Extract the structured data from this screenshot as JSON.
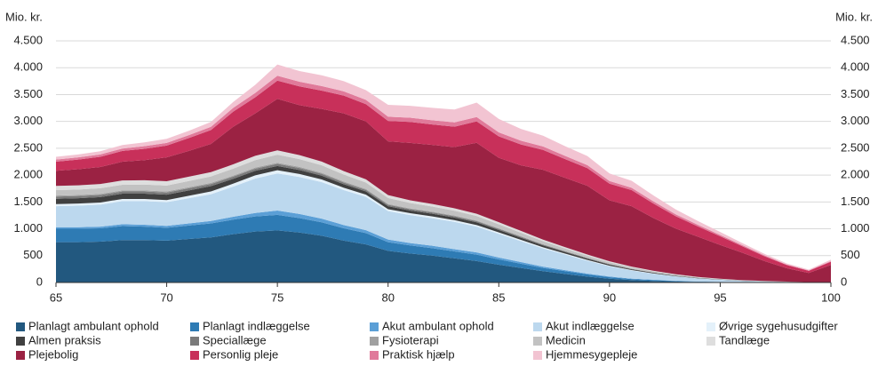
{
  "chart_data": {
    "type": "stacked_area",
    "ylabel": "Mio. kr.",
    "x": [
      65,
      66,
      67,
      68,
      69,
      70,
      71,
      72,
      73,
      74,
      75,
      76,
      77,
      78,
      79,
      80,
      81,
      82,
      83,
      84,
      85,
      86,
      87,
      88,
      89,
      90,
      91,
      92,
      93,
      94,
      95,
      96,
      97,
      98,
      99,
      100
    ],
    "xlim": [
      65,
      100
    ],
    "xticks": [
      65,
      70,
      75,
      80,
      85,
      90,
      95,
      100
    ],
    "ylim": [
      0,
      4500
    ],
    "yticks": [
      0,
      500,
      {
        "value": 1000,
        "label": "1.000"
      },
      {
        "value": 1500,
        "label": "1.500"
      },
      {
        "value": 2000,
        "label": "2.000"
      },
      {
        "value": 2500,
        "label": "2.500"
      },
      {
        "value": 3000,
        "label": "3.000"
      },
      {
        "value": 3500,
        "label": "3.500"
      },
      {
        "value": 4000,
        "label": "4.000"
      },
      {
        "value": 4500,
        "label": "4.500"
      }
    ],
    "grid": true,
    "legend": "bottom",
    "series": [
      {
        "name": "Planlagt ambulant ophold",
        "color": "#22587f",
        "values": [
          750,
          750,
          760,
          790,
          790,
          780,
          810,
          840,
          900,
          950,
          970,
          930,
          870,
          780,
          710,
          590,
          540,
          500,
          450,
          400,
          330,
          270,
          210,
          160,
          110,
          70,
          45,
          30,
          18,
          10,
          6,
          3,
          2,
          1,
          0,
          0
        ]
      },
      {
        "name": "Planlagt indlæggelse",
        "color": "#2e7bb4",
        "values": [
          250,
          250,
          250,
          260,
          250,
          240,
          250,
          260,
          270,
          280,
          290,
          270,
          250,
          230,
          210,
          160,
          150,
          140,
          130,
          120,
          100,
          80,
          60,
          50,
          40,
          30,
          20,
          15,
          10,
          6,
          4,
          2,
          1,
          1,
          0,
          0
        ]
      },
      {
        "name": "Akut ambulant ophold",
        "color": "#5b9fd6",
        "values": [
          30,
          30,
          30,
          35,
          35,
          35,
          40,
          45,
          55,
          65,
          80,
          75,
          70,
          60,
          55,
          50,
          45,
          45,
          40,
          40,
          35,
          30,
          25,
          20,
          15,
          12,
          8,
          6,
          4,
          3,
          2,
          1,
          1,
          0,
          0,
          0
        ]
      },
      {
        "name": "Akut indlæggelse",
        "color": "#bcd8ee",
        "values": [
          390,
          400,
          410,
          430,
          440,
          440,
          470,
          500,
          560,
          640,
          690,
          690,
          680,
          650,
          620,
          530,
          520,
          510,
          510,
          480,
          440,
          390,
          340,
          290,
          240,
          190,
          150,
          110,
          80,
          55,
          38,
          25,
          15,
          8,
          4,
          3
        ]
      },
      {
        "name": "Øvrige sygehusudgifter",
        "color": "#e4f1fa",
        "values": [
          40,
          40,
          40,
          40,
          40,
          40,
          45,
          50,
          55,
          60,
          60,
          55,
          50,
          45,
          40,
          35,
          35,
          35,
          30,
          30,
          28,
          24,
          20,
          17,
          14,
          11,
          8,
          6,
          4,
          3,
          2,
          1,
          1,
          0,
          0,
          0
        ]
      },
      {
        "name": "Almen praksis",
        "color": "#404040",
        "values": [
          100,
          100,
          100,
          100,
          100,
          100,
          100,
          100,
          90,
          85,
          80,
          75,
          70,
          65,
          60,
          55,
          50,
          50,
          50,
          50,
          45,
          40,
          35,
          30,
          25,
          20,
          15,
          12,
          9,
          6,
          4,
          3,
          2,
          1,
          1,
          1
        ]
      },
      {
        "name": "Speciallæge",
        "color": "#7a7a7a",
        "values": [
          40,
          40,
          40,
          40,
          40,
          40,
          40,
          40,
          40,
          40,
          40,
          38,
          35,
          32,
          30,
          28,
          26,
          25,
          24,
          22,
          20,
          18,
          15,
          12,
          10,
          8,
          6,
          5,
          4,
          3,
          2,
          1,
          1,
          1,
          0,
          0
        ]
      },
      {
        "name": "Fysioterapi",
        "color": "#a0a0a0",
        "values": [
          20,
          20,
          20,
          20,
          20,
          20,
          20,
          20,
          20,
          20,
          20,
          20,
          18,
          18,
          16,
          15,
          14,
          14,
          13,
          12,
          11,
          10,
          9,
          8,
          7,
          6,
          5,
          4,
          3,
          2,
          2,
          1,
          1,
          1,
          0,
          0
        ]
      },
      {
        "name": "Medicin",
        "color": "#c2c2c2",
        "values": [
          100,
          100,
          105,
          105,
          110,
          110,
          115,
          120,
          130,
          140,
          150,
          145,
          140,
          130,
          120,
          110,
          100,
          95,
          90,
          85,
          75,
          65,
          55,
          45,
          38,
          30,
          24,
          18,
          13,
          9,
          6,
          4,
          3,
          2,
          1,
          1
        ]
      },
      {
        "name": "Tandlæge",
        "color": "#dedede",
        "values": [
          80,
          80,
          80,
          80,
          80,
          80,
          80,
          80,
          80,
          80,
          80,
          75,
          70,
          65,
          60,
          55,
          50,
          48,
          45,
          42,
          38,
          34,
          30,
          26,
          22,
          18,
          14,
          11,
          8,
          6,
          4,
          3,
          2,
          1,
          1,
          1
        ]
      },
      {
        "name": "Plejebolig",
        "color": "#9b2243",
        "values": [
          280,
          300,
          315,
          350,
          375,
          445,
          480,
          525,
          700,
          790,
          960,
          930,
          980,
          1075,
          1080,
          1000,
          1070,
          1100,
          1140,
          1320,
          1200,
          1220,
          1300,
          1290,
          1280,
          1135,
          1125,
          980,
          850,
          750,
          630,
          510,
          370,
          250,
          170,
          320
        ]
      },
      {
        "name": "Personlig pleje",
        "color": "#c8305a",
        "values": [
          170,
          180,
          190,
          200,
          210,
          220,
          240,
          260,
          280,
          300,
          340,
          350,
          340,
          330,
          320,
          380,
          390,
          380,
          380,
          400,
          400,
          390,
          370,
          350,
          330,
          310,
          300,
          270,
          230,
          190,
          160,
          120,
          90,
          60,
          40,
          60
        ]
      },
      {
        "name": "Praktisk hjælp",
        "color": "#e07a9a",
        "values": [
          40,
          40,
          45,
          45,
          50,
          50,
          55,
          60,
          70,
          80,
          90,
          85,
          85,
          80,
          80,
          80,
          80,
          80,
          80,
          80,
          75,
          70,
          65,
          60,
          55,
          50,
          45,
          40,
          35,
          30,
          25,
          20,
          15,
          10,
          8,
          10
        ]
      },
      {
        "name": "Hjemmesygepleje",
        "color": "#f2c4d2",
        "values": [
          50,
          55,
          60,
          65,
          70,
          75,
          80,
          90,
          110,
          150,
          210,
          200,
          200,
          190,
          180,
          220,
          220,
          230,
          240,
          270,
          250,
          220,
          200,
          180,
          170,
          140,
          130,
          110,
          90,
          70,
          55,
          40,
          30,
          20,
          15,
          30
        ]
      }
    ]
  }
}
